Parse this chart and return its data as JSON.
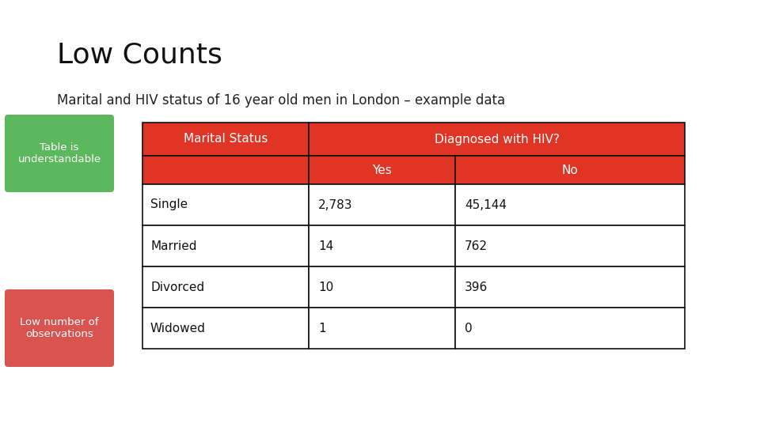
{
  "title": "Low Counts",
  "subtitle": "Marital and HIV status of 16 year old men in London – example data",
  "title_fontsize": 26,
  "subtitle_fontsize": 12,
  "background_color": "#ffffff",
  "header_bg_color": "#e03525",
  "header_text_color": "#ffffff",
  "table_border_color": "#111111",
  "row_bg_color": "#ffffff",
  "green_label_bg": "#5cb85c",
  "red_label_bg": "#d9534f",
  "label_text_color": "#ffffff",
  "rows": [
    [
      "Single",
      "2,783",
      "45,144"
    ],
    [
      "Married",
      "14",
      "762"
    ],
    [
      "Divorced",
      "10",
      "396"
    ],
    [
      "Widowed",
      "1",
      "0"
    ]
  ]
}
